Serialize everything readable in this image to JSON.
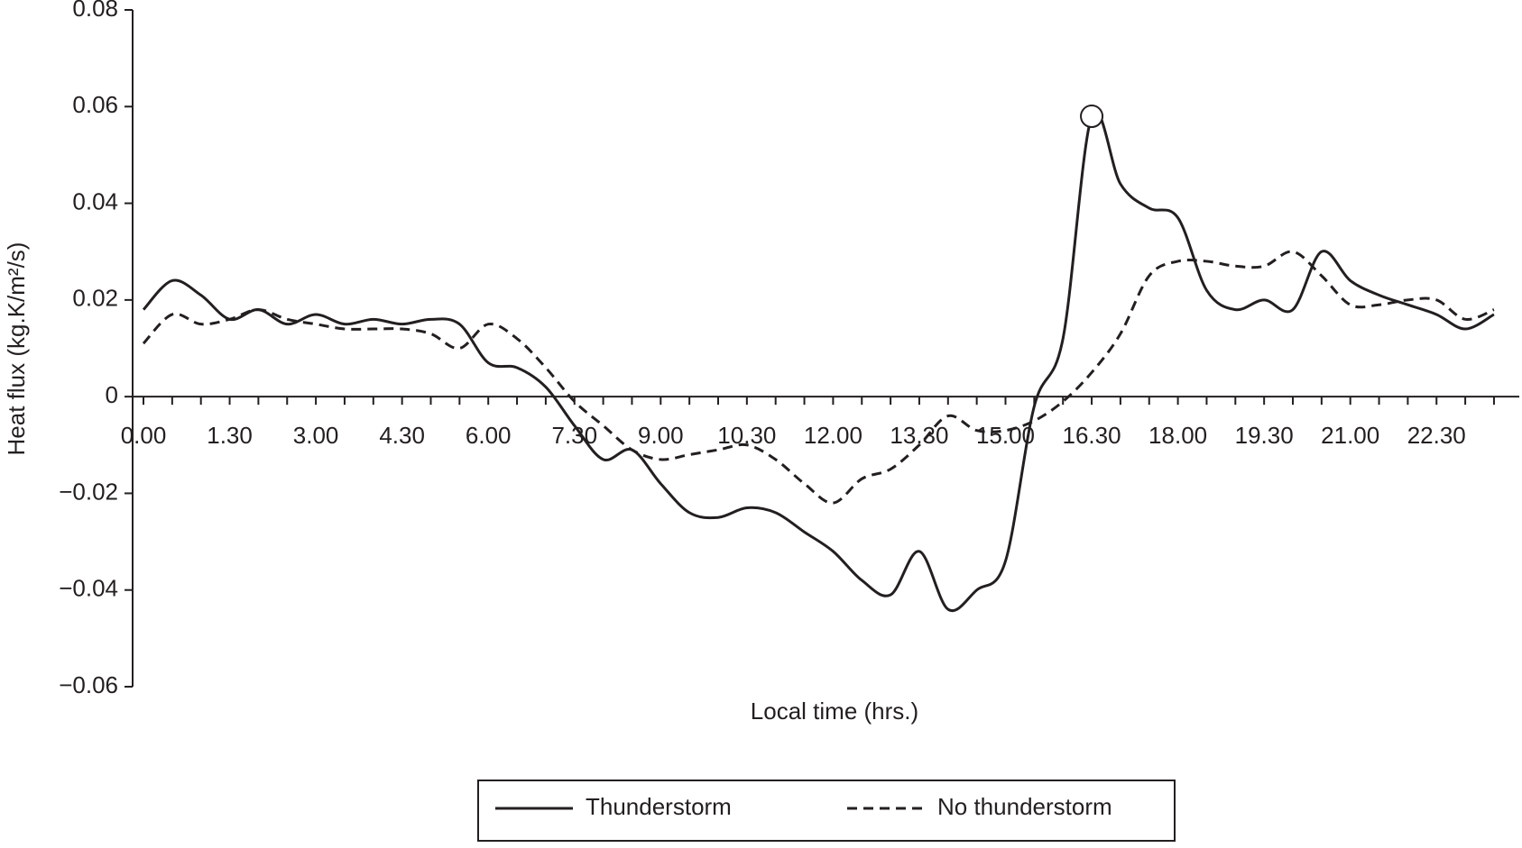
{
  "chart_data": {
    "type": "line",
    "x_label": "Local time (hrs.)",
    "y_label": "Heat flux (kg.K/m²/s)",
    "categories": [
      "0.00",
      null,
      null,
      "1.30",
      null,
      null,
      "3.00",
      null,
      null,
      "4.30",
      null,
      null,
      "6.00",
      null,
      null,
      "7.30",
      null,
      null,
      "9.00",
      null,
      null,
      "10.30",
      null,
      null,
      "12.00",
      null,
      null,
      "13.30",
      null,
      null,
      "15.00",
      null,
      null,
      "16.30",
      null,
      null,
      "18.00",
      null,
      null,
      "19.30",
      null,
      null,
      "21.00",
      null,
      null,
      "22.30",
      null,
      null
    ],
    "ylim": [
      -0.06,
      0.08
    ],
    "yticks": [
      {
        "value": -0.06,
        "label": "−0.06"
      },
      {
        "value": -0.04,
        "label": "−0.04"
      },
      {
        "value": -0.02,
        "label": "−0.02"
      },
      0,
      0.02,
      0.04,
      0.06,
      0.08
    ],
    "legend": "bottom",
    "series": [
      {
        "name": "Thunderstorm",
        "color": "#231f20",
        "line_style": "solid",
        "highlight_index": 33,
        "values": [
          0.018,
          0.024,
          0.021,
          0.016,
          0.018,
          0.015,
          0.017,
          0.015,
          0.016,
          0.015,
          0.016,
          0.015,
          0.007,
          0.006,
          0.002,
          -0.006,
          -0.013,
          -0.011,
          -0.018,
          -0.024,
          -0.025,
          -0.023,
          -0.024,
          -0.028,
          -0.032,
          -0.038,
          -0.041,
          -0.032,
          -0.044,
          -0.04,
          -0.034,
          -0.002,
          0.012,
          0.058,
          0.044,
          0.039,
          0.037,
          0.022,
          0.018,
          0.02,
          0.018,
          0.03,
          0.024,
          0.021,
          0.019,
          0.017,
          0.014,
          0.017
        ]
      },
      {
        "name": "No thunderstorm",
        "color": "#231f20",
        "line_style": "dashed",
        "values": [
          0.011,
          0.017,
          0.015,
          0.016,
          0.018,
          0.016,
          0.015,
          0.014,
          0.014,
          0.014,
          0.013,
          0.01,
          0.015,
          0.012,
          0.006,
          -0.001,
          -0.006,
          -0.011,
          -0.013,
          -0.012,
          -0.011,
          -0.01,
          -0.013,
          -0.018,
          -0.022,
          -0.017,
          -0.015,
          -0.01,
          -0.004,
          -0.007,
          -0.007,
          -0.005,
          -0.001,
          0.005,
          0.013,
          0.025,
          0.028,
          0.028,
          0.027,
          0.027,
          0.03,
          0.025,
          0.019,
          0.019,
          0.02,
          0.02,
          0.016,
          0.018
        ]
      }
    ]
  }
}
